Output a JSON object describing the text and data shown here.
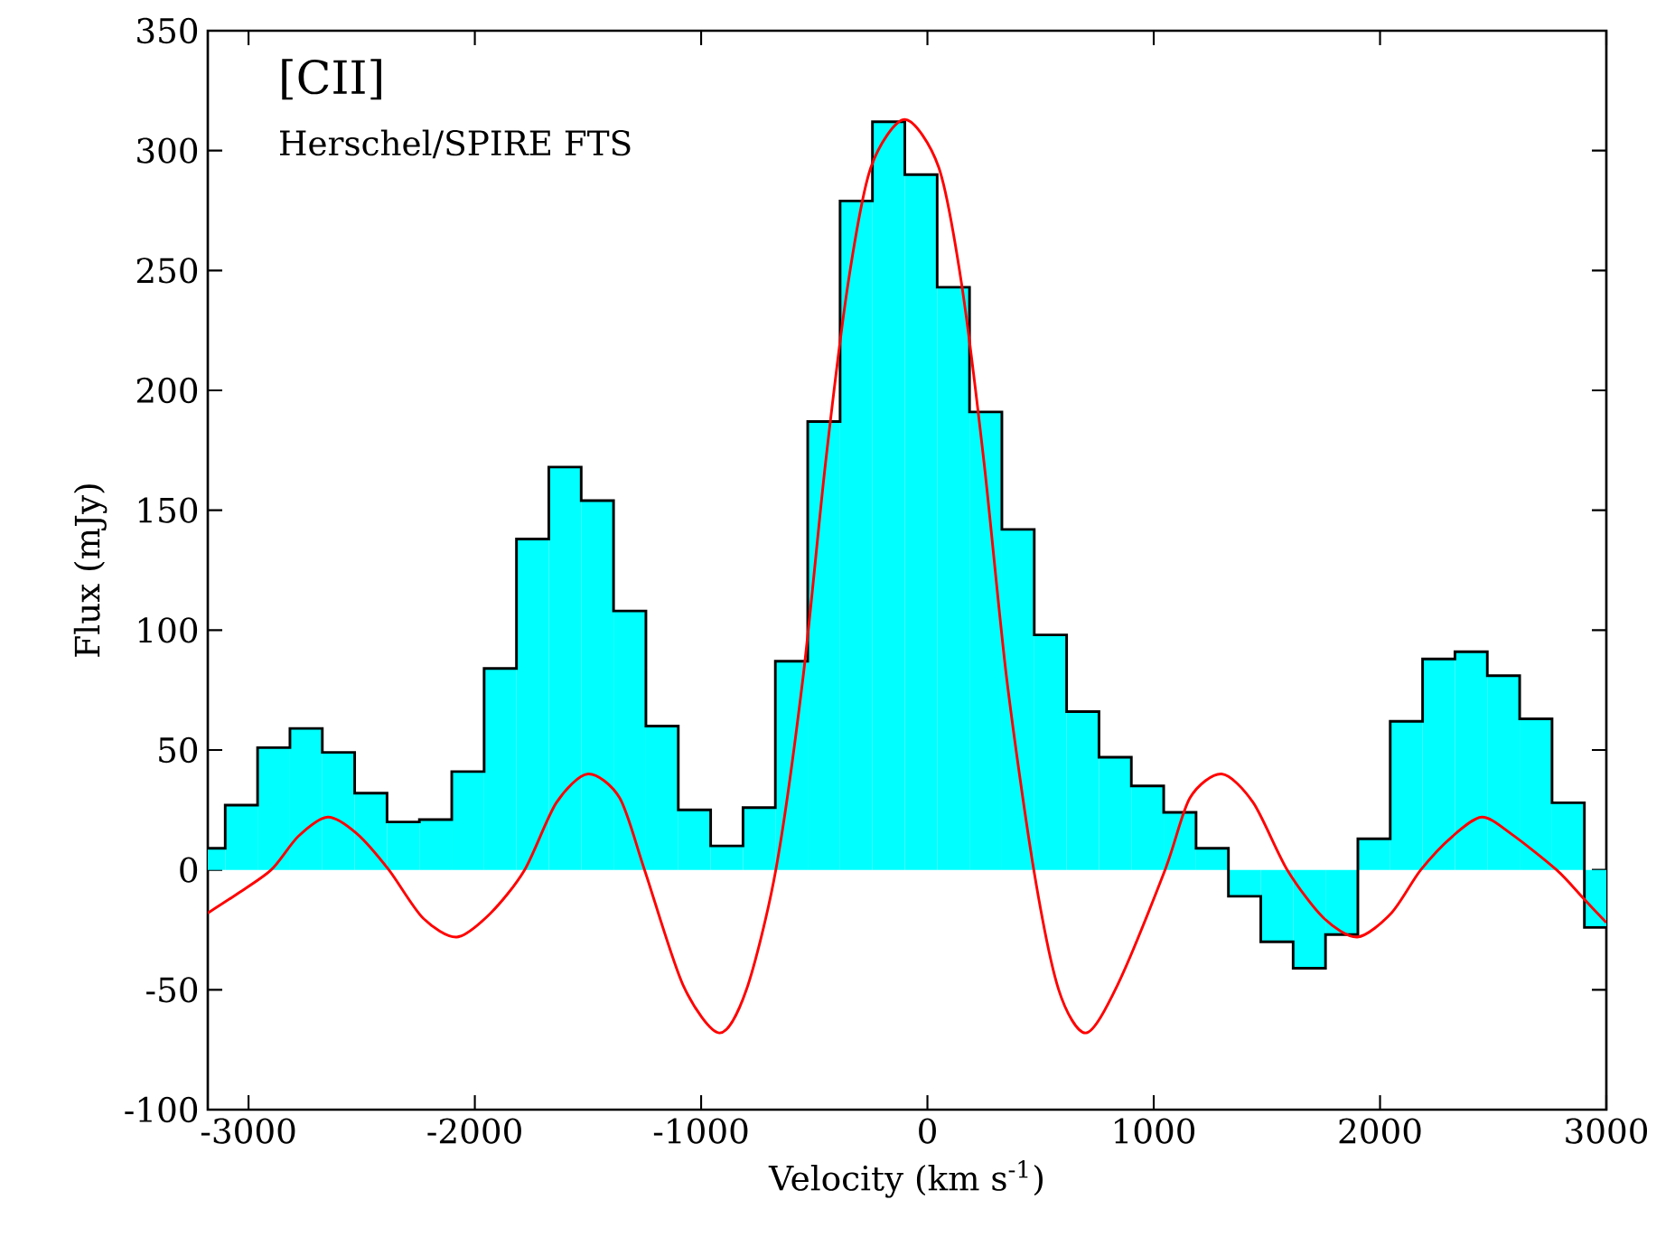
{
  "chart_data": {
    "type": "histogram",
    "xlabel": "Velocity (km s$^{-1}$)",
    "ylabel": "Flux (mJy)",
    "annotations": [
      "[CII]",
      "Herschel/SPIRE FTS"
    ],
    "xlim": [
      -3180,
      3000
    ],
    "ylim": [
      -100,
      350
    ],
    "xticks": [
      -3000,
      -2000,
      -1000,
      0,
      1000,
      2000,
      3000
    ],
    "yticks": [
      -100,
      -50,
      0,
      50,
      100,
      150,
      200,
      250,
      300,
      350
    ],
    "series": [
      {
        "color": "#00ffff",
        "bins": [
          -3180,
          -3103,
          -2960,
          -2817,
          -2674,
          -2531,
          -2388,
          -2245,
          -2102,
          -1959,
          -1816,
          -1673,
          -1530,
          -1387,
          -1244,
          -1101,
          -958,
          -815,
          -672,
          -529,
          -386,
          -243,
          -100,
          43,
          186,
          329,
          472,
          615,
          758,
          901,
          1044,
          1187,
          1330,
          1473,
          1616,
          1759,
          1902,
          2045,
          2188,
          2331,
          2474,
          2617,
          2760,
          2903,
          3000
        ],
        "values": [
          9,
          27,
          51,
          59,
          49,
          32,
          20,
          21,
          41,
          84,
          138,
          168,
          154,
          108,
          60,
          25,
          10,
          26,
          87,
          187,
          279,
          312,
          290,
          243,
          191,
          142,
          98,
          66,
          47,
          35,
          24,
          9,
          -11,
          -30,
          -41,
          -27,
          13,
          62,
          88,
          91,
          81,
          63,
          28,
          -24
        ]
      },
      {
        "type": "step",
        "color": "#000000",
        "x": [
          -3180,
          -3103,
          -2960,
          -2817,
          -2674,
          -2531,
          -2388,
          -2245,
          -2102,
          -1959,
          -1816,
          -1673,
          -1530,
          -1387,
          -1244,
          -1101,
          -958,
          -815,
          -672,
          -529,
          -386,
          -243,
          -100,
          43,
          186,
          329,
          472,
          615,
          758,
          901,
          1044,
          1187,
          1330,
          1473,
          1616,
          1759,
          1902,
          2045,
          2188,
          2331,
          2474,
          2617,
          2760,
          2903,
          3000
        ],
        "values": [
          9,
          27,
          51,
          59,
          49,
          32,
          20,
          21,
          41,
          84,
          138,
          168,
          154,
          108,
          60,
          25,
          10,
          26,
          87,
          187,
          279,
          312,
          290,
          243,
          191,
          142,
          98,
          66,
          47,
          35,
          24,
          9,
          -11,
          -30,
          -41,
          -27,
          13,
          62,
          88,
          91,
          81,
          63,
          28,
          -24,
          -24
        ]
      },
      {
        "type": "line",
        "color": "#ff0000",
        "x": [
          -3180,
          -3050,
          -2900,
          -2780,
          -2650,
          -2520,
          -2380,
          -2230,
          -2080,
          -1930,
          -1780,
          -1640,
          -1500,
          -1360,
          -1250,
          -1080,
          -920,
          -800,
          -670,
          -550,
          -450,
          -350,
          -250,
          -100,
          50,
          150,
          250,
          350,
          470,
          580,
          700,
          840,
          1050,
          1160,
          1300,
          1440,
          1590,
          1750,
          1900,
          2050,
          2180,
          2320,
          2450,
          2580,
          2780,
          2900,
          3000
        ],
        "values": [
          -18,
          -10,
          0,
          14,
          22,
          15,
          0,
          -20,
          -28,
          -18,
          0,
          28,
          40,
          30,
          0,
          -48,
          -68,
          -50,
          0,
          80,
          170,
          245,
          293,
          313,
          293,
          245,
          170,
          80,
          0,
          -50,
          -68,
          -48,
          0,
          30,
          40,
          28,
          0,
          -20,
          -28,
          -18,
          0,
          14,
          22,
          15,
          0,
          -12,
          -22
        ]
      }
    ]
  }
}
